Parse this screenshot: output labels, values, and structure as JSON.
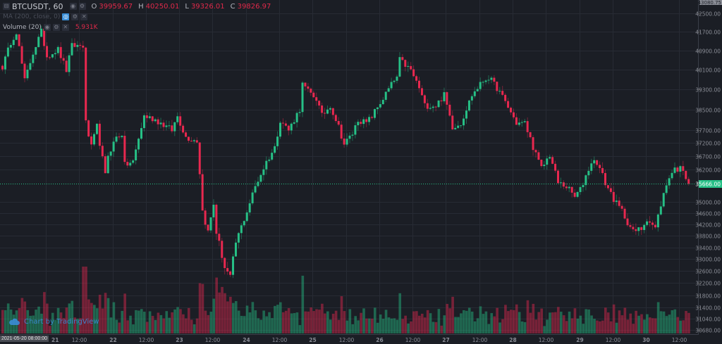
{
  "legend": {
    "symbol": "BTCUSDT, 60",
    "open_label": "O",
    "open": "39959.67",
    "high_label": "H",
    "high": "40250.01",
    "low_label": "L",
    "low": "39326.01",
    "close_label": "C",
    "close": "39826.97",
    "ma": "MA (200, close, 0)",
    "volume": "Volume (20)",
    "volume_value": "5.931K"
  },
  "watermark": "Chart by TradingView",
  "crosshair_time": "2021-05-20 08:00:00",
  "colors": {
    "background": "#1b1e25",
    "grid": "#272b34",
    "up": "#26c086",
    "down": "#e8284f",
    "last_price": "#26c086"
  },
  "chart_data": {
    "type": "candlestick",
    "symbol": "BTCUSDT",
    "interval": "60",
    "scale": "log",
    "price_axis_top_label": "43080.75",
    "y_ticks": [
      "42500.00",
      "41700.00",
      "40900.00",
      "40100.00",
      "39300.00",
      "38500.00",
      "37700.00",
      "37200.00",
      "36700.00",
      "36200.00",
      "35000.00",
      "34600.00",
      "34200.00",
      "33800.00",
      "33400.00",
      "33000.00",
      "32600.00",
      "32200.00",
      "31800.00",
      "31400.00",
      "31040.00",
      "30680.00"
    ],
    "last_price": "35666.00",
    "x_ticks": [
      "21",
      "12:00",
      "22",
      "12:00",
      "23",
      "12:00",
      "24",
      "12:00",
      "25",
      "12:00",
      "26",
      "12:00",
      "27",
      "12:00",
      "28",
      "12:00",
      "29",
      "12:00",
      "30",
      "12:00"
    ],
    "first_candle": "2021-05-20 08:00",
    "candle_count": 248,
    "close_anchors": [
      [
        0,
        40225
      ],
      [
        3,
        41262
      ],
      [
        5,
        41712
      ],
      [
        8,
        39648
      ],
      [
        11,
        40814
      ],
      [
        14,
        41712
      ],
      [
        16,
        40666
      ],
      [
        20,
        40960
      ],
      [
        23,
        40080
      ],
      [
        25,
        41110
      ],
      [
        29,
        41110
      ],
      [
        30,
        37963
      ],
      [
        32,
        37012
      ],
      [
        34,
        37826
      ],
      [
        37,
        35954
      ],
      [
        38,
        36745
      ],
      [
        41,
        37417
      ],
      [
        43,
        37553
      ],
      [
        44,
        36347
      ],
      [
        47,
        36478
      ],
      [
        51,
        38240
      ],
      [
        55,
        38100
      ],
      [
        61,
        37688
      ],
      [
        63,
        38240
      ],
      [
        66,
        37417
      ],
      [
        70,
        37282
      ],
      [
        71,
        36086
      ],
      [
        72,
        34675
      ],
      [
        74,
        33929
      ],
      [
        76,
        34929
      ],
      [
        77,
        33929
      ],
      [
        80,
        32723
      ],
      [
        82,
        32370
      ],
      [
        84,
        33564
      ],
      [
        88,
        34675
      ],
      [
        91,
        35567
      ],
      [
        95,
        36478
      ],
      [
        98,
        37012
      ],
      [
        100,
        38100
      ],
      [
        103,
        37688
      ],
      [
        107,
        38516
      ],
      [
        108,
        39504
      ],
      [
        110,
        39220
      ],
      [
        113,
        38936
      ],
      [
        115,
        38240
      ],
      [
        118,
        38656
      ],
      [
        121,
        37826
      ],
      [
        123,
        37145
      ],
      [
        126,
        37553
      ],
      [
        128,
        38100
      ],
      [
        131,
        37963
      ],
      [
        133,
        38240
      ],
      [
        137,
        38936
      ],
      [
        140,
        39504
      ],
      [
        142,
        39793
      ],
      [
        143,
        40520
      ],
      [
        147,
        40080
      ],
      [
        150,
        39362
      ],
      [
        152,
        38656
      ],
      [
        156,
        38656
      ],
      [
        159,
        39077
      ],
      [
        162,
        37826
      ],
      [
        165,
        37963
      ],
      [
        169,
        39077
      ],
      [
        173,
        39648
      ],
      [
        175,
        39793
      ],
      [
        178,
        39362
      ],
      [
        181,
        38796
      ],
      [
        185,
        37963
      ],
      [
        188,
        37963
      ],
      [
        192,
        36745
      ],
      [
        194,
        36218
      ],
      [
        197,
        36745
      ],
      [
        200,
        35696
      ],
      [
        203,
        35567
      ],
      [
        206,
        35181
      ],
      [
        208,
        35438
      ],
      [
        212,
        36478
      ],
      [
        214,
        36478
      ],
      [
        217,
        35696
      ],
      [
        221,
        34929
      ],
      [
        223,
        34675
      ],
      [
        227,
        33929
      ],
      [
        230,
        34052
      ],
      [
        232,
        34426
      ],
      [
        235,
        34052
      ],
      [
        237,
        34929
      ],
      [
        240,
        35954
      ],
      [
        242,
        36218
      ],
      [
        245,
        36218
      ],
      [
        247,
        35666
      ]
    ]
  }
}
